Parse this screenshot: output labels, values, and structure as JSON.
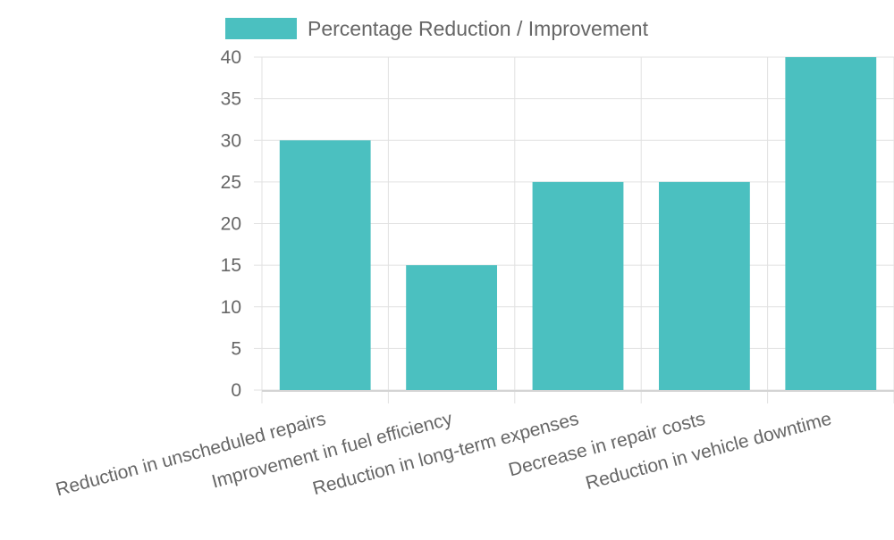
{
  "chart_data": {
    "type": "bar",
    "categories": [
      "Reduction in unscheduled repairs",
      "Improvement in fuel efficiency",
      "Reduction in long-term expenses",
      "Decrease in repair costs",
      "Reduction in vehicle downtime"
    ],
    "series": [
      {
        "name": "Percentage Reduction / Improvement",
        "values": [
          30,
          15,
          25,
          25,
          40
        ]
      }
    ],
    "ylim": [
      0,
      40
    ],
    "yticks": [
      0,
      5,
      10,
      15,
      20,
      25,
      30,
      35,
      40
    ],
    "grid": true,
    "legend_position": "top",
    "colors": {
      "bar": "#4bc0c0",
      "grid": "#e1e1e1",
      "text": "#666666"
    }
  }
}
